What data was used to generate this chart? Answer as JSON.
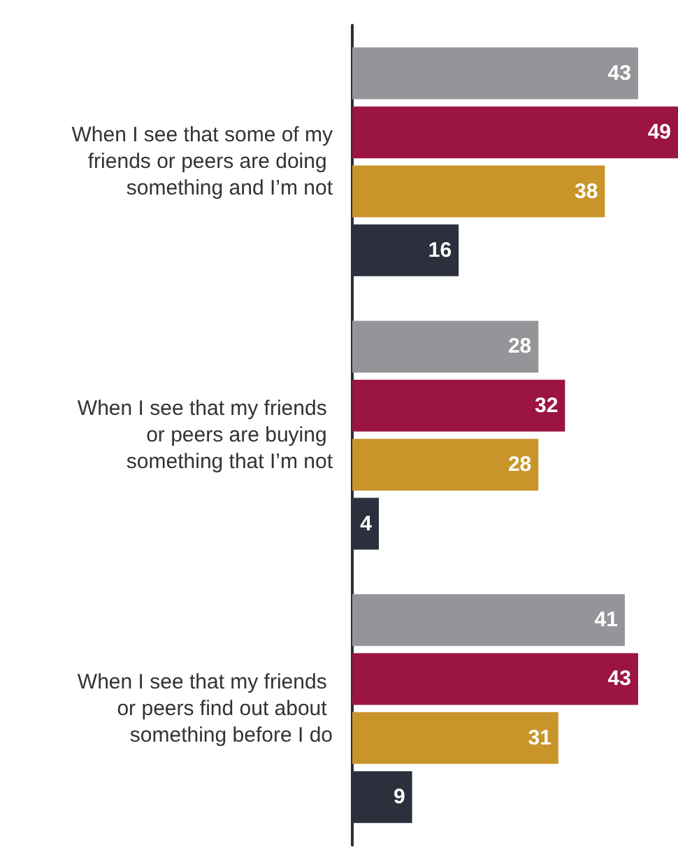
{
  "chart_data": {
    "type": "bar",
    "orientation": "horizontal",
    "data_labels": true,
    "categories": [
      "When I see that some of my friends or peers are doing something and I’m not",
      "When I see that my friends or peers are buying something that I’m not",
      "When I see that my friends or peers find out about something before I do"
    ],
    "series": [
      {
        "color": "#939598",
        "values": [
          43,
          28,
          41
        ]
      },
      {
        "color": "#9b1443",
        "values": [
          49,
          32,
          43
        ]
      },
      {
        "color": "#c9952a",
        "values": [
          38,
          28,
          31
        ]
      },
      {
        "color": "#2b303c",
        "values": [
          16,
          4,
          9
        ]
      }
    ]
  }
}
